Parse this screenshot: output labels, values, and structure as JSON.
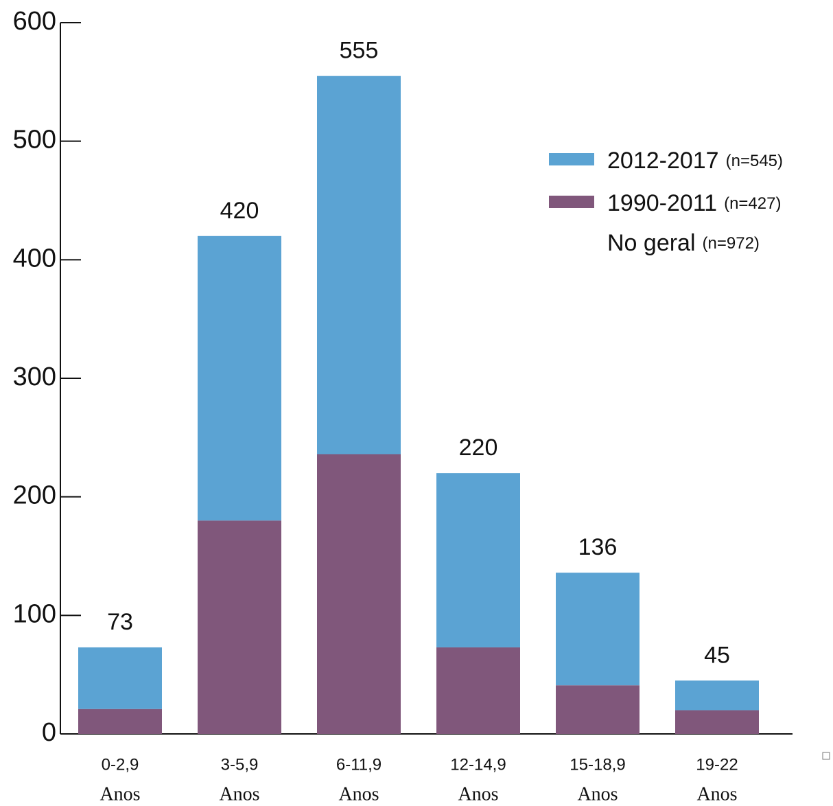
{
  "chart_data": {
    "type": "stacked_bar",
    "categories": [
      "0-2,9",
      "3-5,9",
      "6-11,9",
      "12-14,9",
      "15-18,9",
      "19-22"
    ],
    "category_unit": "Anos",
    "series": [
      {
        "name": "1990-2011",
        "color": "#80577b",
        "values": [
          21,
          180,
          236,
          73,
          41,
          20
        ]
      },
      {
        "name": "2012-2017",
        "color": "#5ba3d3",
        "values": [
          52,
          240,
          319,
          147,
          95,
          25
        ]
      }
    ],
    "totals": [
      73,
      420,
      555,
      220,
      136,
      45
    ],
    "legend_notes": [
      "(n=427)",
      "(n=545)"
    ],
    "legend_extra": {
      "label": "No geral",
      "note": "(n=972)"
    },
    "ylim": [
      0,
      600
    ],
    "yticks": [
      0,
      100,
      200,
      300,
      400,
      500,
      600
    ]
  }
}
